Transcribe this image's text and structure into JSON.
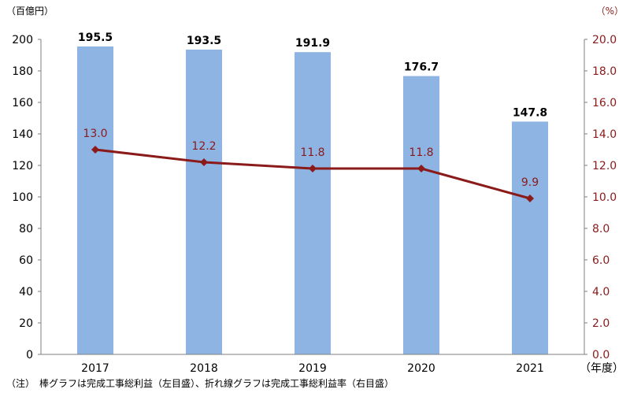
{
  "chart_data": {
    "type": "bar+line",
    "categories": [
      "2017",
      "2018",
      "2019",
      "2020",
      "2021"
    ],
    "series": [
      {
        "kind": "bar",
        "axis": "left",
        "values": [
          195.5,
          193.5,
          191.9,
          176.7,
          147.8
        ],
        "labels": [
          "195.5",
          "193.5",
          "191.9",
          "176.7",
          "147.8"
        ],
        "color": "#8EB4E3"
      },
      {
        "kind": "line",
        "axis": "right",
        "values": [
          13.0,
          12.2,
          11.8,
          11.8,
          9.9
        ],
        "labels": [
          "13.0",
          "12.2",
          "11.8",
          "11.8",
          "9.9"
        ],
        "color": "#8B1A1A"
      }
    ],
    "y_left": {
      "unit": "（百億円）",
      "ylim": [
        0,
        200
      ],
      "ticks": [
        "0",
        "20",
        "40",
        "60",
        "80",
        "100",
        "120",
        "140",
        "160",
        "180",
        "200"
      ]
    },
    "y_right": {
      "unit": "（%）",
      "ylim": [
        0,
        20
      ],
      "ticks": [
        "0.0",
        "2.0",
        "4.0",
        "6.0",
        "8.0",
        "10.0",
        "12.0",
        "14.0",
        "16.0",
        "18.0",
        "20.0"
      ]
    },
    "x_unit": "（年度）",
    "grid": false,
    "legend": "none",
    "note": "（注）　棒グラフは完成工事総利益（左目盛）、折れ線グラフは完成工事総利益率（右目盛）"
  }
}
